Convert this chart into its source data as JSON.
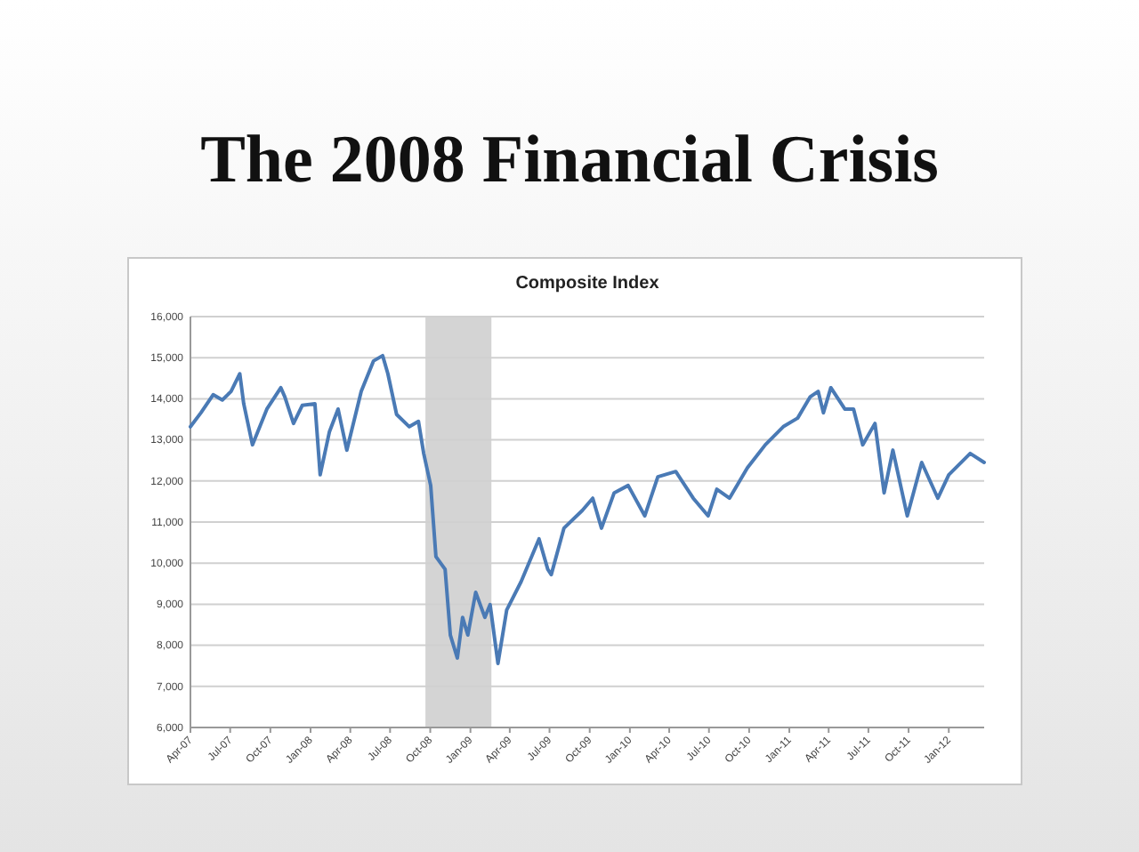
{
  "chart_data": {
    "type": "line",
    "title": "The 2008 Financial Crisis",
    "subtitle": "Composite Index",
    "x": [
      "2007-04-01",
      "2007-04-25",
      "2007-05-23",
      "2007-06-13",
      "2007-07-03",
      "2007-07-23",
      "2007-08-01",
      "2007-08-21",
      "2007-09-23",
      "2007-10-25",
      "2007-11-03",
      "2007-11-23",
      "2007-12-13",
      "2008-01-11",
      "2008-01-23",
      "2008-02-13",
      "2008-03-04",
      "2008-03-24",
      "2008-04-26",
      "2008-05-24",
      "2008-06-14",
      "2008-06-26",
      "2008-07-16",
      "2008-08-14",
      "2008-09-04",
      "2008-09-16",
      "2008-10-02",
      "2008-10-14",
      "2008-11-04",
      "2008-11-16",
      "2008-12-02",
      "2008-12-14",
      "2008-12-26",
      "2009-01-13",
      "2009-02-03",
      "2009-02-15",
      "2009-03-05",
      "2009-03-25",
      "2009-04-27",
      "2009-06-07",
      "2009-06-27",
      "2009-07-05",
      "2009-08-03",
      "2009-09-14",
      "2009-10-08",
      "2009-10-28",
      "2009-11-26",
      "2009-12-28",
      "2010-02-04",
      "2010-03-06",
      "2010-04-16",
      "2010-05-26",
      "2010-06-29",
      "2010-07-19",
      "2010-08-17",
      "2010-09-27",
      "2010-11-07",
      "2010-12-18",
      "2011-01-20",
      "2011-02-18",
      "2011-03-08",
      "2011-03-20",
      "2011-04-06",
      "2011-05-08",
      "2011-05-28",
      "2011-06-18",
      "2011-07-16",
      "2011-08-06",
      "2011-08-26",
      "2011-09-28",
      "2011-10-31",
      "2011-12-07",
      "2012-01-01",
      "2012-02-19",
      "2012-03-22"
    ],
    "series": [
      {
        "color": "#4a7ab5",
        "values": [
          13320,
          13660,
          14100,
          13970,
          14180,
          14610,
          13880,
          12880,
          13750,
          14270,
          14050,
          13400,
          13840,
          13880,
          12150,
          13190,
          13750,
          12750,
          14180,
          14920,
          15050,
          14610,
          13620,
          13320,
          13450,
          12670,
          11890,
          10160,
          9850,
          8250,
          7690,
          8680,
          8250,
          9290,
          8680,
          8990,
          7560,
          8860,
          9550,
          10590,
          9850,
          9720,
          10850,
          11280,
          11580,
          10850,
          11710,
          11890,
          11150,
          12100,
          12230,
          11580,
          11150,
          11800,
          11580,
          12320,
          12880,
          13320,
          13530,
          14050,
          14180,
          13660,
          14270,
          13750,
          13750,
          12880,
          13400,
          11710,
          12750,
          11150,
          12450,
          11580,
          12150,
          12670,
          12450
        ]
      }
    ],
    "xlim": [
      "2007-04-01",
      "2012-03-22"
    ],
    "xticks": [
      {
        "value": "2007-04-01",
        "label": "Apr-07"
      },
      {
        "value": "2007-07-01",
        "label": "Jul-07"
      },
      {
        "value": "2007-10-01",
        "label": "Oct-07"
      },
      {
        "value": "2008-01-01",
        "label": "Jan-08"
      },
      {
        "value": "2008-04-01",
        "label": "Apr-08"
      },
      {
        "value": "2008-07-01",
        "label": "Jul-08"
      },
      {
        "value": "2008-10-01",
        "label": "Oct-08"
      },
      {
        "value": "2009-01-01",
        "label": "Jan-09"
      },
      {
        "value": "2009-04-01",
        "label": "Apr-09"
      },
      {
        "value": "2009-07-01",
        "label": "Jul-09"
      },
      {
        "value": "2009-10-01",
        "label": "Oct-09"
      },
      {
        "value": "2010-01-01",
        "label": "Jan-10"
      },
      {
        "value": "2010-04-01",
        "label": "Apr-10"
      },
      {
        "value": "2010-07-01",
        "label": "Jul-10"
      },
      {
        "value": "2010-10-01",
        "label": "Oct-10"
      },
      {
        "value": "2011-01-01",
        "label": "Jan-11"
      },
      {
        "value": "2011-04-01",
        "label": "Apr-11"
      },
      {
        "value": "2011-07-01",
        "label": "Jul-11"
      },
      {
        "value": "2011-10-01",
        "label": "Oct-11"
      },
      {
        "value": "2012-01-01",
        "label": "Jan-12"
      }
    ],
    "ylim": [
      6000,
      16000
    ],
    "yticks": [
      {
        "value": 6000,
        "label": "6,000"
      },
      {
        "value": 7000,
        "label": "7,000"
      },
      {
        "value": 8000,
        "label": "8,000"
      },
      {
        "value": 9000,
        "label": "9,000"
      },
      {
        "value": 10000,
        "label": "10,000"
      },
      {
        "value": 11000,
        "label": "11,000"
      },
      {
        "value": 12000,
        "label": "12,000"
      },
      {
        "value": 13000,
        "label": "13,000"
      },
      {
        "value": 14000,
        "label": "14,000"
      },
      {
        "value": 15000,
        "label": "15,000"
      },
      {
        "value": 16000,
        "label": "16,000"
      }
    ],
    "bands": [
      {
        "axis": "x",
        "from": "2008-09-20",
        "to": "2009-02-18",
        "color": "#d4d4d4"
      }
    ],
    "grid": "y",
    "marker": "none",
    "line_style": "solid"
  }
}
